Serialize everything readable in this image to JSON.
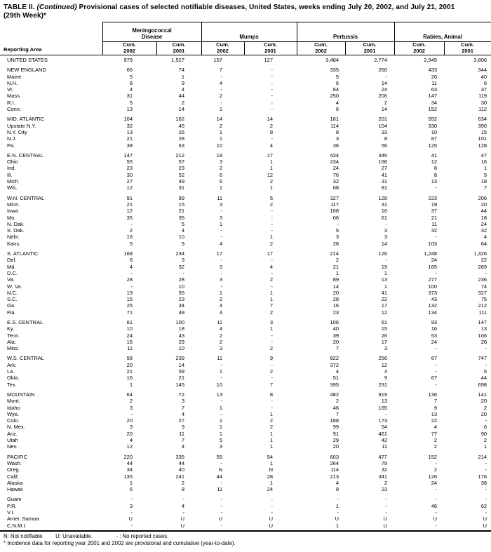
{
  "title": {
    "part1": "TABLE II.",
    "part2": "(Continued)",
    "part3": "Provisional cases of selected notifiable diseases, United States, weeks ending July 20, 2002, and July 21, 2001",
    "line2": "(29th Week)*"
  },
  "header": {
    "reporting_area": "Reporting Area",
    "groups": [
      {
        "label_lines": [
          "Meningococcal",
          "Disease"
        ]
      },
      {
        "label_lines": [
          "Mumps"
        ]
      },
      {
        "label_lines": [
          "Pertussis"
        ]
      },
      {
        "label_lines": [
          "Rabies, Animal"
        ]
      }
    ],
    "subcols": [
      "Cum. 2002",
      "Cum. 2001"
    ]
  },
  "table": {
    "rows": [
      {
        "label": "UNITED STATES",
        "kind": "total",
        "values": [
          "979",
          "1,527",
          "157",
          "127",
          "3,484",
          "2,774",
          "2,945",
          "3,806"
        ]
      },
      {
        "label": "NEW ENGLAND",
        "kind": "region",
        "section_start": true,
        "values": [
          "66",
          "74",
          "7",
          "-",
          "335",
          "260",
          "433",
          "344"
        ]
      },
      {
        "label": "Maine",
        "kind": "state",
        "values": [
          "5",
          "1",
          "-",
          "-",
          "5",
          "-",
          "26",
          "40"
        ]
      },
      {
        "label": "N.H.",
        "kind": "state",
        "values": [
          "8",
          "9",
          "4",
          "-",
          "6",
          "14",
          "11",
          "6"
        ]
      },
      {
        "label": "Vt.",
        "kind": "state",
        "values": [
          "4",
          "4",
          "-",
          "-",
          "64",
          "24",
          "63",
          "37"
        ]
      },
      {
        "label": "Mass.",
        "kind": "state",
        "values": [
          "31",
          "44",
          "2",
          "-",
          "250",
          "206",
          "147",
          "119"
        ]
      },
      {
        "label": "R.I.",
        "kind": "state",
        "values": [
          "5",
          "2",
          "-",
          "-",
          "4",
          "2",
          "34",
          "30"
        ]
      },
      {
        "label": "Conn.",
        "kind": "state",
        "values": [
          "13",
          "14",
          "1",
          "-",
          "6",
          "14",
          "152",
          "112"
        ]
      },
      {
        "label": "MID. ATLANTIC",
        "kind": "region",
        "section_start": true,
        "values": [
          "104",
          "162",
          "14",
          "14",
          "161",
          "201",
          "552",
          "634"
        ]
      },
      {
        "label": "Upstate N.Y.",
        "kind": "state",
        "values": [
          "32",
          "45",
          "2",
          "2",
          "114",
          "104",
          "330",
          "390"
        ]
      },
      {
        "label": "N.Y. City",
        "kind": "state",
        "values": [
          "13",
          "26",
          "1",
          "8",
          "8",
          "33",
          "10",
          "15"
        ]
      },
      {
        "label": "N.J.",
        "kind": "state",
        "values": [
          "21",
          "28",
          "1",
          "-",
          "3",
          "8",
          "87",
          "101"
        ]
      },
      {
        "label": "Pa.",
        "kind": "state",
        "values": [
          "38",
          "63",
          "10",
          "4",
          "36",
          "56",
          "125",
          "128"
        ]
      },
      {
        "label": "E.N. CENTRAL",
        "kind": "region",
        "section_start": true,
        "values": [
          "147",
          "212",
          "18",
          "17",
          "434",
          "346",
          "41",
          "47"
        ]
      },
      {
        "label": "Ohio",
        "kind": "state",
        "values": [
          "55",
          "57",
          "3",
          "1",
          "234",
          "166",
          "12",
          "16"
        ]
      },
      {
        "label": "Ind.",
        "kind": "state",
        "values": [
          "23",
          "23",
          "2",
          "1",
          "24",
          "27",
          "8",
          "1"
        ]
      },
      {
        "label": "Ill.",
        "kind": "state",
        "values": [
          "30",
          "52",
          "6",
          "12",
          "76",
          "41",
          "8",
          "5"
        ]
      },
      {
        "label": "Mich.",
        "kind": "state",
        "values": [
          "27",
          "49",
          "6",
          "2",
          "32",
          "31",
          "13",
          "18"
        ]
      },
      {
        "label": "Wis.",
        "kind": "state",
        "values": [
          "12",
          "31",
          "1",
          "1",
          "68",
          "81",
          "-",
          "7"
        ]
      },
      {
        "label": "W.N. CENTRAL",
        "kind": "region",
        "section_start": true,
        "values": [
          "91",
          "99",
          "11",
          "5",
          "327",
          "128",
          "223",
          "206"
        ]
      },
      {
        "label": "Minn.",
        "kind": "state",
        "values": [
          "21",
          "15",
          "3",
          "2",
          "117",
          "31",
          "19",
          "20"
        ]
      },
      {
        "label": "Iowa",
        "kind": "state",
        "values": [
          "12",
          "21",
          "-",
          "-",
          "108",
          "16",
          "37",
          "44"
        ]
      },
      {
        "label": "Mo.",
        "kind": "state",
        "values": [
          "35",
          "35",
          "3",
          "-",
          "66",
          "61",
          "21",
          "18"
        ]
      },
      {
        "label": "N. Dak.",
        "kind": "state",
        "values": [
          "-",
          "5",
          "1",
          "-",
          "-",
          "-",
          "11",
          "24"
        ]
      },
      {
        "label": "S. Dak.",
        "kind": "state",
        "values": [
          "2",
          "4",
          "-",
          "-",
          "5",
          "3",
          "32",
          "32"
        ]
      },
      {
        "label": "Nebr.",
        "kind": "state",
        "values": [
          "16",
          "10",
          "-",
          "1",
          "3",
          "3",
          "-",
          "4"
        ]
      },
      {
        "label": "Kans.",
        "kind": "state",
        "values": [
          "5",
          "9",
          "4",
          "2",
          "28",
          "14",
          "103",
          "64"
        ]
      },
      {
        "label": "S. ATLANTIC",
        "kind": "region",
        "section_start": true,
        "values": [
          "168",
          "234",
          "17",
          "17",
          "214",
          "126",
          "1,248",
          "1,326"
        ]
      },
      {
        "label": "Del.",
        "kind": "state",
        "values": [
          "6",
          "3",
          "-",
          "-",
          "2",
          "-",
          "24",
          "22"
        ]
      },
      {
        "label": "Md.",
        "kind": "state",
        "values": [
          "4",
          "32",
          "3",
          "4",
          "21",
          "19",
          "165",
          "269"
        ]
      },
      {
        "label": "D.C.",
        "kind": "state",
        "values": [
          "-",
          "-",
          "-",
          "-",
          "1",
          "1",
          "-",
          "-"
        ]
      },
      {
        "label": "Va.",
        "kind": "state",
        "values": [
          "28",
          "28",
          "3",
          "2",
          "89",
          "13",
          "277",
          "236"
        ]
      },
      {
        "label": "W. Va.",
        "kind": "state",
        "values": [
          "-",
          "10",
          "-",
          "-",
          "14",
          "1",
          "100",
          "74"
        ]
      },
      {
        "label": "N.C.",
        "kind": "state",
        "values": [
          "19",
          "55",
          "1",
          "1",
          "20",
          "41",
          "373",
          "327"
        ]
      },
      {
        "label": "S.C.",
        "kind": "state",
        "values": [
          "15",
          "23",
          "2",
          "1",
          "28",
          "22",
          "43",
          "75"
        ]
      },
      {
        "label": "Ga.",
        "kind": "state",
        "values": [
          "25",
          "34",
          "4",
          "7",
          "16",
          "17",
          "132",
          "212"
        ]
      },
      {
        "label": "Fla.",
        "kind": "state",
        "values": [
          "71",
          "49",
          "4",
          "2",
          "23",
          "12",
          "134",
          "111"
        ]
      },
      {
        "label": "E.S. CENTRAL",
        "kind": "region",
        "section_start": true,
        "values": [
          "61",
          "100",
          "11",
          "3",
          "106",
          "61",
          "93",
          "147"
        ]
      },
      {
        "label": "Ky.",
        "kind": "state",
        "values": [
          "10",
          "18",
          "4",
          "1",
          "40",
          "15",
          "16",
          "13"
        ]
      },
      {
        "label": "Tenn.",
        "kind": "state",
        "values": [
          "24",
          "43",
          "2",
          "-",
          "39",
          "26",
          "53",
          "106"
        ]
      },
      {
        "label": "Ala.",
        "kind": "state",
        "values": [
          "16",
          "29",
          "2",
          "-",
          "20",
          "17",
          "24",
          "28"
        ]
      },
      {
        "label": "Miss.",
        "kind": "state",
        "values": [
          "11",
          "10",
          "3",
          "2",
          "7",
          "3",
          "-",
          "-"
        ]
      },
      {
        "label": "W.S. CENTRAL",
        "kind": "region",
        "section_start": true,
        "values": [
          "58",
          "239",
          "11",
          "9",
          "822",
          "256",
          "67",
          "747"
        ]
      },
      {
        "label": "Ark.",
        "kind": "state",
        "values": [
          "20",
          "14",
          "-",
          "-",
          "372",
          "12",
          "-",
          "-"
        ]
      },
      {
        "label": "La.",
        "kind": "state",
        "values": [
          "21",
          "59",
          "1",
          "2",
          "4",
          "4",
          "-",
          "5"
        ]
      },
      {
        "label": "Okla.",
        "kind": "state",
        "values": [
          "16",
          "21",
          "-",
          "-",
          "51",
          "9",
          "67",
          "44"
        ]
      },
      {
        "label": "Tex.",
        "kind": "state",
        "values": [
          "1",
          "145",
          "10",
          "7",
          "395",
          "231",
          "-",
          "698"
        ]
      },
      {
        "label": "MOUNTAIN",
        "kind": "region",
        "section_start": true,
        "values": [
          "64",
          "72",
          "13",
          "8",
          "482",
          "919",
          "136",
          "141"
        ]
      },
      {
        "label": "Mont.",
        "kind": "state",
        "values": [
          "2",
          "3",
          "-",
          "-",
          "2",
          "13",
          "7",
          "20"
        ]
      },
      {
        "label": "Idaho",
        "kind": "state",
        "values": [
          "3",
          "7",
          "1",
          "-",
          "46",
          "165",
          "9",
          "2"
        ]
      },
      {
        "label": "Wyo.",
        "kind": "state",
        "values": [
          "-",
          "4",
          "-",
          "1",
          "7",
          "-",
          "13",
          "20"
        ]
      },
      {
        "label": "Colo.",
        "kind": "state",
        "values": [
          "20",
          "27",
          "2",
          "2",
          "188",
          "173",
          "22",
          "-"
        ]
      },
      {
        "label": "N. Mex.",
        "kind": "state",
        "values": [
          "3",
          "9",
          "1",
          "2",
          "99",
          "54",
          "4",
          "6"
        ]
      },
      {
        "label": "Ariz.",
        "kind": "state",
        "values": [
          "20",
          "11",
          "1",
          "1",
          "91",
          "461",
          "77",
          "90"
        ]
      },
      {
        "label": "Utah",
        "kind": "state",
        "values": [
          "4",
          "7",
          "5",
          "1",
          "29",
          "42",
          "2",
          "2"
        ]
      },
      {
        "label": "Nev.",
        "kind": "state",
        "values": [
          "12",
          "4",
          "3",
          "1",
          "20",
          "11",
          "2",
          "1"
        ]
      },
      {
        "label": "PACIFIC",
        "kind": "region",
        "section_start": true,
        "values": [
          "220",
          "335",
          "55",
          "54",
          "603",
          "477",
          "152",
          "214"
        ]
      },
      {
        "label": "Wash.",
        "kind": "state",
        "values": [
          "44",
          "44",
          "-",
          "1",
          "264",
          "79",
          "-",
          "-"
        ]
      },
      {
        "label": "Oreg.",
        "kind": "state",
        "values": [
          "34",
          "40",
          "N",
          "N",
          "114",
          "32",
          "2",
          "-"
        ]
      },
      {
        "label": "Calif.",
        "kind": "state",
        "values": [
          "135",
          "241",
          "44",
          "28",
          "213",
          "341",
          "126",
          "176"
        ]
      },
      {
        "label": "Alaska",
        "kind": "state",
        "values": [
          "1",
          "2",
          "-",
          "1",
          "4",
          "2",
          "24",
          "38"
        ]
      },
      {
        "label": "Hawaii",
        "kind": "state",
        "values": [
          "6",
          "8",
          "11",
          "24",
          "8",
          "23",
          "-",
          "-"
        ]
      },
      {
        "label": "Guam",
        "kind": "territory",
        "section_start": true,
        "values": [
          "-",
          "-",
          "-",
          "-",
          "-",
          "-",
          "-",
          "-"
        ]
      },
      {
        "label": "P.R.",
        "kind": "territory",
        "values": [
          "3",
          "4",
          "-",
          "-",
          "1",
          "-",
          "46",
          "62"
        ]
      },
      {
        "label": "V.I.",
        "kind": "territory",
        "values": [
          "-",
          "-",
          "-",
          "-",
          "-",
          "-",
          "-",
          "-"
        ]
      },
      {
        "label": "Amer. Samoa",
        "kind": "territory",
        "values": [
          "U",
          "U",
          "U",
          "U",
          "U",
          "U",
          "U",
          "U"
        ]
      },
      {
        "label": "C.N.M.I.",
        "kind": "territory",
        "values": [
          "-",
          "U",
          "-",
          "U",
          "1",
          "U",
          "-",
          "U"
        ]
      }
    ]
  },
  "footnotes": {
    "legend": [
      "N: Not notifiable.",
      "U: Unavailable.",
      "- : No reported cases."
    ],
    "note": "* Incidence data for reporting year 2001 and 2002 are provisional and cumulative (year-to-date)."
  }
}
